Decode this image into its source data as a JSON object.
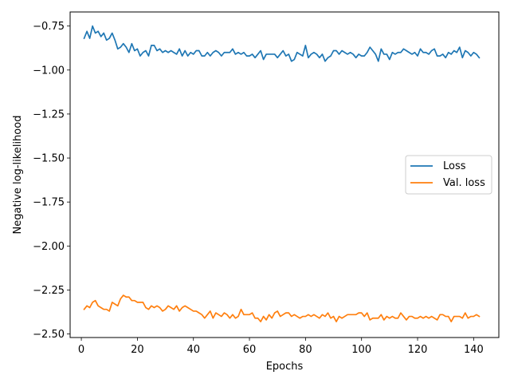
{
  "chart_data": {
    "type": "line",
    "title": "",
    "xlabel": "Epochs",
    "ylabel": "Negative log-likelihood",
    "xlim": [
      -4,
      149
    ],
    "ylim": [
      -2.52,
      -0.67
    ],
    "xticks": [
      0,
      20,
      40,
      60,
      80,
      100,
      120,
      140
    ],
    "xtick_labels": [
      "0",
      "20",
      "40",
      "60",
      "80",
      "100",
      "120",
      "140"
    ],
    "yticks": [
      -0.75,
      -1.0,
      -1.25,
      -1.5,
      -1.75,
      -2.0,
      -2.25,
      -2.5
    ],
    "ytick_labels": [
      "−0.75",
      "−1.00",
      "−1.25",
      "−1.50",
      "−1.75",
      "−2.00",
      "−2.25",
      "−2.50"
    ],
    "grid": false,
    "legend_position": "center-right",
    "x": [
      1,
      2,
      3,
      4,
      5,
      6,
      7,
      8,
      9,
      10,
      11,
      12,
      13,
      14,
      15,
      16,
      17,
      18,
      19,
      20,
      21,
      22,
      23,
      24,
      25,
      26,
      27,
      28,
      29,
      30,
      31,
      32,
      33,
      34,
      35,
      36,
      37,
      38,
      39,
      40,
      41,
      42,
      43,
      44,
      45,
      46,
      47,
      48,
      49,
      50,
      51,
      52,
      53,
      54,
      55,
      56,
      57,
      58,
      59,
      60,
      61,
      62,
      63,
      64,
      65,
      66,
      67,
      68,
      69,
      70,
      71,
      72,
      73,
      74,
      75,
      76,
      77,
      78,
      79,
      80,
      81,
      82,
      83,
      84,
      85,
      86,
      87,
      88,
      89,
      90,
      91,
      92,
      93,
      94,
      95,
      96,
      97,
      98,
      99,
      100,
      101,
      102,
      103,
      104,
      105,
      106,
      107,
      108,
      109,
      110,
      111,
      112,
      113,
      114,
      115,
      116,
      117,
      118,
      119,
      120,
      121,
      122,
      123,
      124,
      125,
      126,
      127,
      128,
      129,
      130,
      131,
      132,
      133,
      134,
      135,
      136,
      137,
      138,
      139,
      140,
      141,
      142
    ],
    "series": [
      {
        "name": "Loss",
        "color": "#1f77b4",
        "values": [
          -0.82,
          -0.78,
          -0.82,
          -0.75,
          -0.79,
          -0.78,
          -0.81,
          -0.79,
          -0.83,
          -0.82,
          -0.79,
          -0.83,
          -0.88,
          -0.87,
          -0.85,
          -0.87,
          -0.9,
          -0.85,
          -0.89,
          -0.88,
          -0.92,
          -0.9,
          -0.89,
          -0.92,
          -0.86,
          -0.86,
          -0.89,
          -0.88,
          -0.9,
          -0.89,
          -0.9,
          -0.89,
          -0.9,
          -0.91,
          -0.88,
          -0.92,
          -0.89,
          -0.92,
          -0.9,
          -0.91,
          -0.89,
          -0.89,
          -0.92,
          -0.92,
          -0.9,
          -0.92,
          -0.9,
          -0.89,
          -0.9,
          -0.92,
          -0.9,
          -0.9,
          -0.9,
          -0.88,
          -0.91,
          -0.9,
          -0.91,
          -0.9,
          -0.92,
          -0.92,
          -0.91,
          -0.93,
          -0.91,
          -0.89,
          -0.94,
          -0.91,
          -0.91,
          -0.91,
          -0.91,
          -0.93,
          -0.91,
          -0.89,
          -0.92,
          -0.91,
          -0.95,
          -0.94,
          -0.9,
          -0.91,
          -0.92,
          -0.86,
          -0.93,
          -0.91,
          -0.9,
          -0.91,
          -0.93,
          -0.91,
          -0.95,
          -0.93,
          -0.92,
          -0.89,
          -0.89,
          -0.91,
          -0.89,
          -0.9,
          -0.91,
          -0.9,
          -0.91,
          -0.93,
          -0.91,
          -0.92,
          -0.92,
          -0.9,
          -0.87,
          -0.89,
          -0.91,
          -0.95,
          -0.88,
          -0.91,
          -0.91,
          -0.94,
          -0.9,
          -0.91,
          -0.9,
          -0.9,
          -0.88,
          -0.89,
          -0.9,
          -0.91,
          -0.9,
          -0.92,
          -0.88,
          -0.9,
          -0.9,
          -0.91,
          -0.89,
          -0.88,
          -0.92,
          -0.92,
          -0.91,
          -0.93,
          -0.9,
          -0.91,
          -0.89,
          -0.9,
          -0.87,
          -0.93,
          -0.89,
          -0.9,
          -0.92,
          -0.9,
          -0.91,
          -0.93
        ]
      },
      {
        "name": "Val. loss",
        "color": "#ff7f0e",
        "values": [
          -2.36,
          -2.34,
          -2.35,
          -2.32,
          -2.31,
          -2.34,
          -2.35,
          -2.36,
          -2.36,
          -2.37,
          -2.32,
          -2.33,
          -2.34,
          -2.3,
          -2.28,
          -2.29,
          -2.29,
          -2.31,
          -2.31,
          -2.32,
          -2.32,
          -2.32,
          -2.35,
          -2.36,
          -2.34,
          -2.35,
          -2.34,
          -2.35,
          -2.37,
          -2.36,
          -2.34,
          -2.35,
          -2.36,
          -2.34,
          -2.37,
          -2.35,
          -2.34,
          -2.35,
          -2.36,
          -2.37,
          -2.37,
          -2.38,
          -2.39,
          -2.41,
          -2.39,
          -2.37,
          -2.41,
          -2.38,
          -2.39,
          -2.4,
          -2.38,
          -2.39,
          -2.41,
          -2.39,
          -2.41,
          -2.4,
          -2.36,
          -2.39,
          -2.39,
          -2.39,
          -2.38,
          -2.41,
          -2.41,
          -2.43,
          -2.4,
          -2.42,
          -2.39,
          -2.41,
          -2.38,
          -2.37,
          -2.4,
          -2.39,
          -2.38,
          -2.38,
          -2.4,
          -2.39,
          -2.4,
          -2.41,
          -2.4,
          -2.4,
          -2.39,
          -2.4,
          -2.39,
          -2.4,
          -2.41,
          -2.39,
          -2.4,
          -2.38,
          -2.41,
          -2.4,
          -2.43,
          -2.4,
          -2.41,
          -2.4,
          -2.39,
          -2.39,
          -2.39,
          -2.39,
          -2.38,
          -2.38,
          -2.4,
          -2.38,
          -2.42,
          -2.41,
          -2.41,
          -2.41,
          -2.39,
          -2.42,
          -2.4,
          -2.41,
          -2.4,
          -2.41,
          -2.41,
          -2.38,
          -2.4,
          -2.42,
          -2.4,
          -2.4,
          -2.41,
          -2.41,
          -2.4,
          -2.41,
          -2.4,
          -2.41,
          -2.4,
          -2.41,
          -2.42,
          -2.39,
          -2.39,
          -2.4,
          -2.4,
          -2.43,
          -2.4,
          -2.4,
          -2.4,
          -2.41,
          -2.38,
          -2.41,
          -2.4,
          -2.4,
          -2.39,
          -2.4
        ]
      }
    ]
  }
}
